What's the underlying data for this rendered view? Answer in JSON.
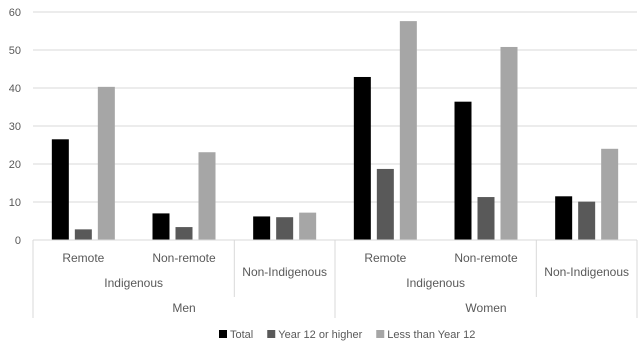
{
  "chart_data": {
    "type": "bar",
    "title": "",
    "xlabel": "",
    "ylabel": "",
    "ylim": [
      0,
      60
    ],
    "yticks": [
      0,
      10,
      20,
      30,
      40,
      50,
      60
    ],
    "grid": true,
    "legend_position": "bottom",
    "categories": [
      "Men / Indigenous / Remote",
      "Men / Indigenous / Non-remote",
      "Men / Non-Indigenous",
      "Women / Indigenous / Remote",
      "Women / Indigenous / Non-remote",
      "Women / Non-Indigenous"
    ],
    "category_labels": {
      "level1": [
        "Remote",
        "Non-remote",
        "",
        "Remote",
        "Non-remote",
        ""
      ],
      "level2": [
        {
          "label": "Indigenous",
          "span": 2
        },
        {
          "label": "Non-Indigenous",
          "span": 1
        },
        {
          "label": "Indigenous",
          "span": 2
        },
        {
          "label": "Non-Indigenous",
          "span": 1
        }
      ],
      "level3": [
        {
          "label": "Men",
          "span": 3
        },
        {
          "label": "Women",
          "span": 3
        }
      ]
    },
    "series": [
      {
        "name": "Total",
        "color": "#000000",
        "values": [
          26.5,
          7,
          6.2,
          42.9,
          36.4,
          11.5
        ]
      },
      {
        "name": "Year 12 or higher",
        "color": "#595959",
        "values": [
          2.8,
          3.4,
          6.0,
          18.7,
          11.3,
          10.1
        ]
      },
      {
        "name": "Less than Year 12",
        "color": "#a6a6a6",
        "values": [
          40.3,
          23.1,
          7.2,
          57.6,
          50.8,
          24.0
        ]
      }
    ]
  }
}
